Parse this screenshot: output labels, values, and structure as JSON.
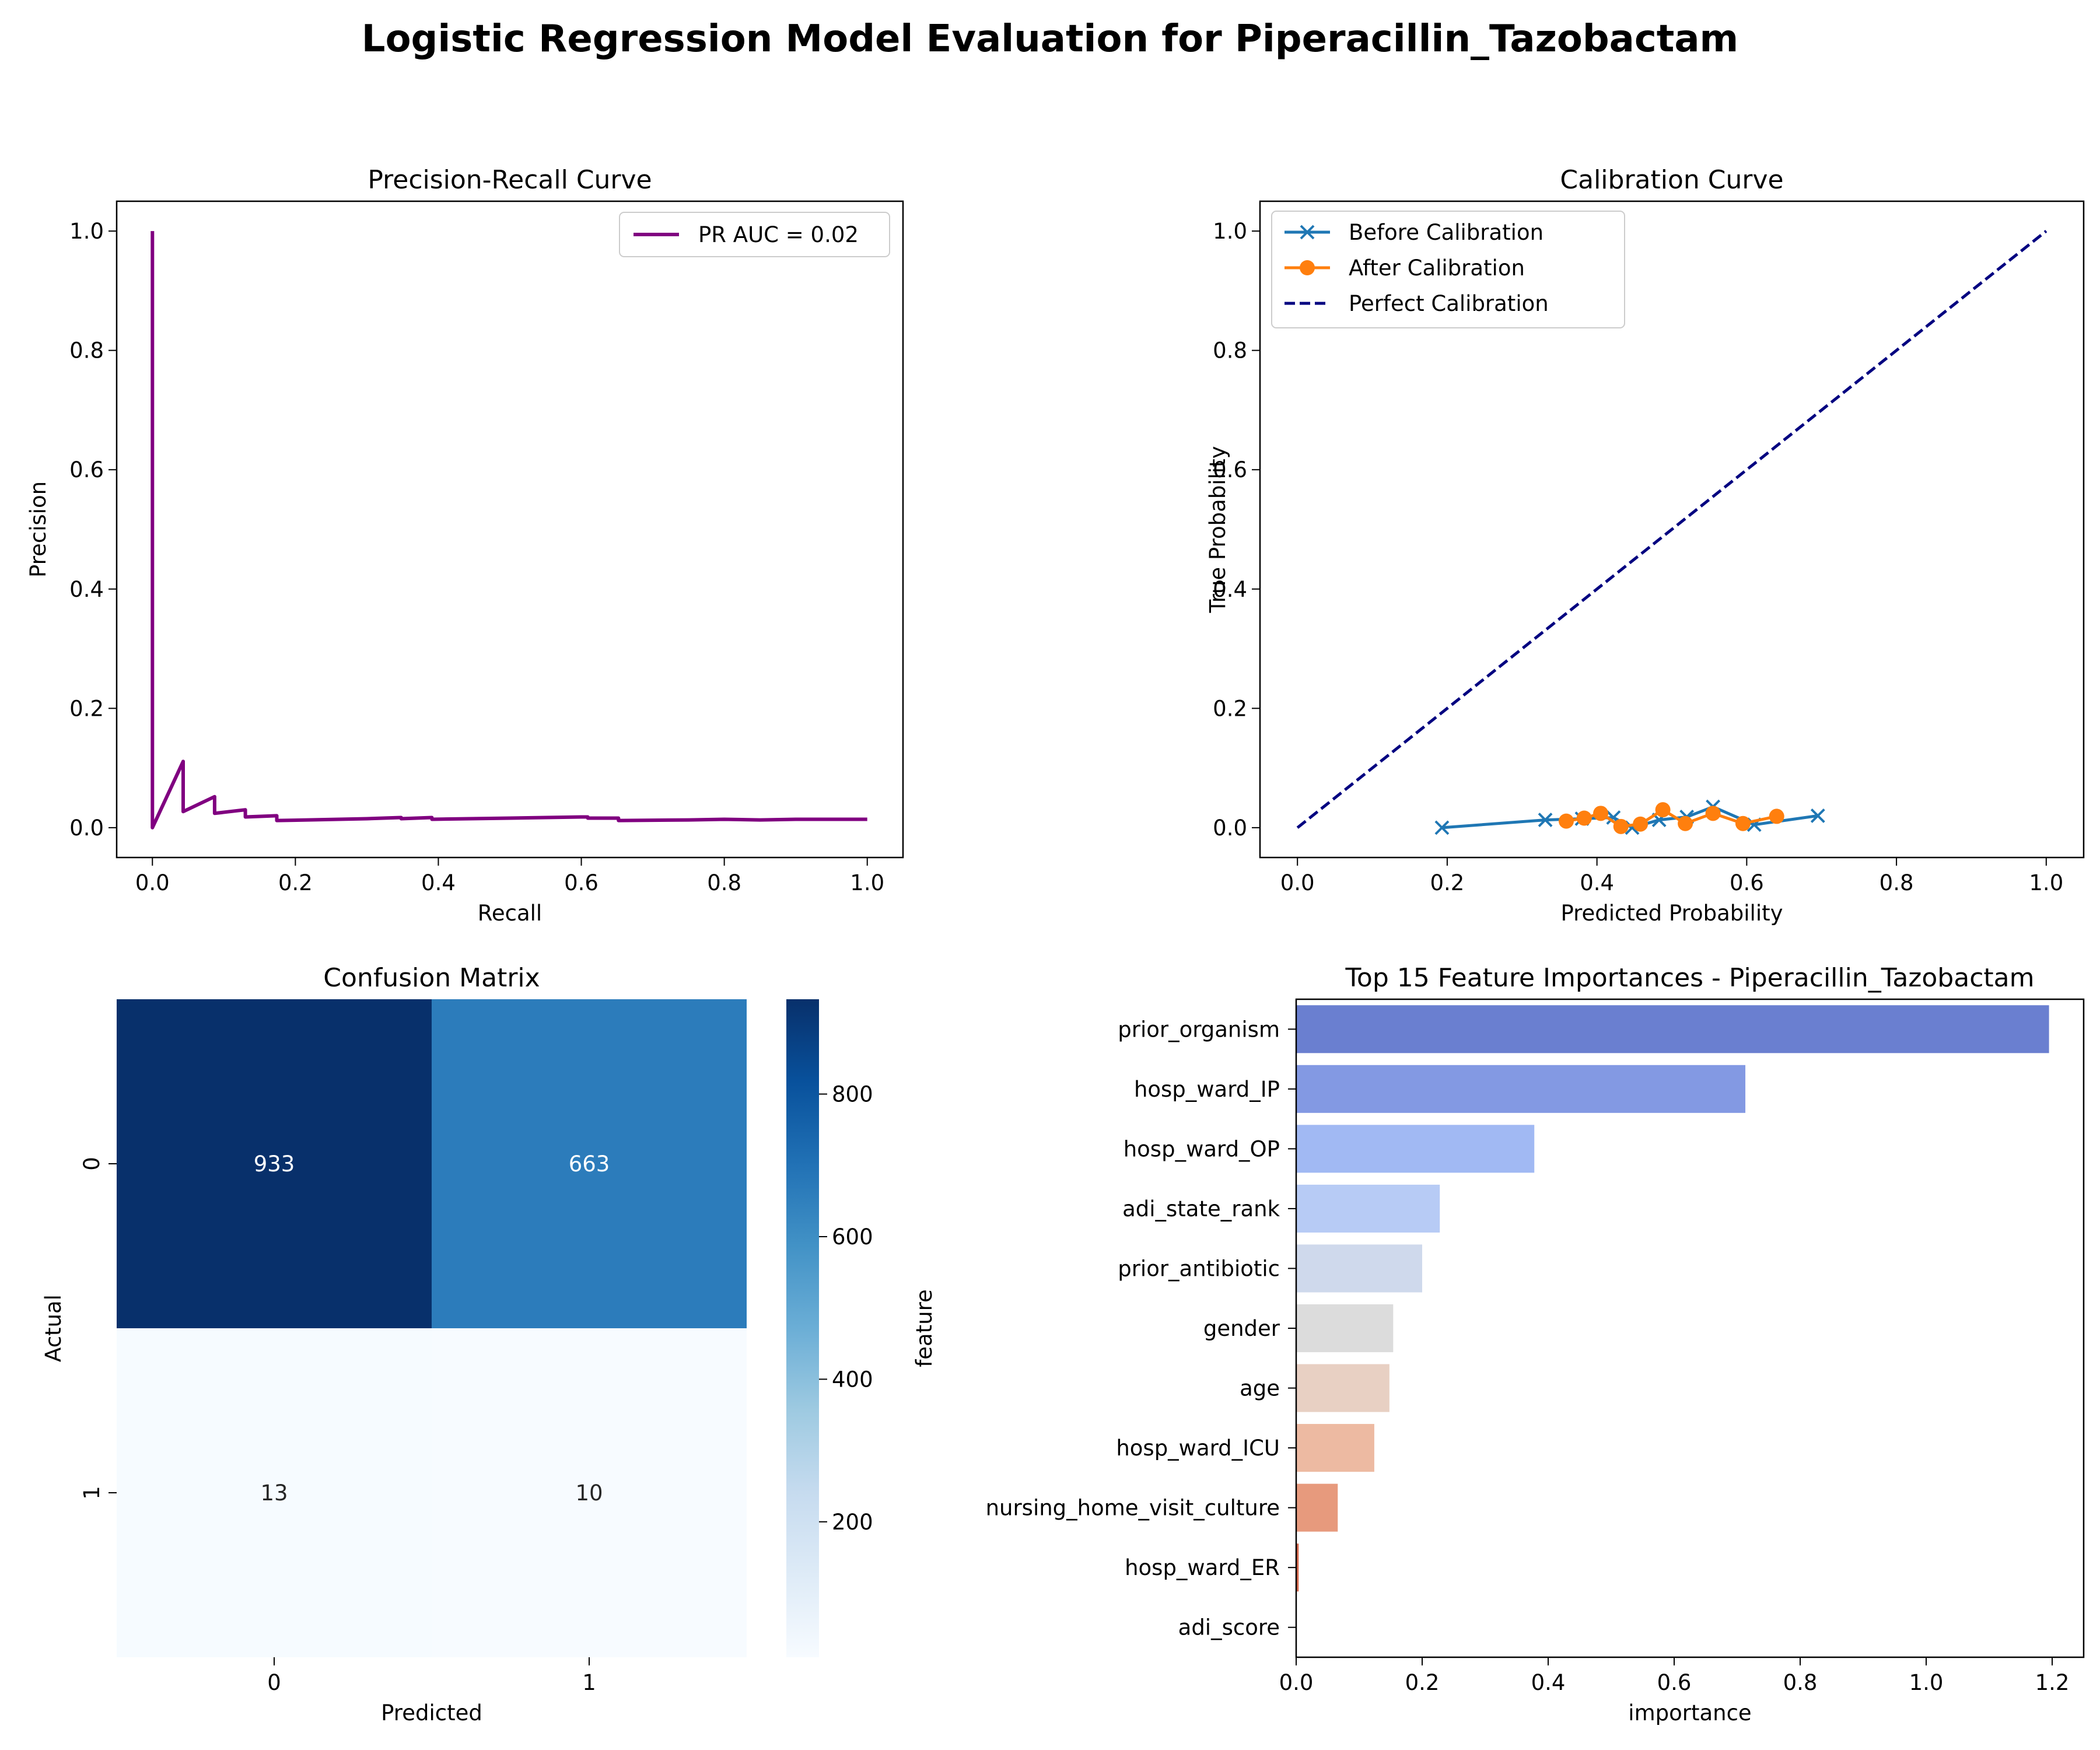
{
  "figure": {
    "suptitle": "Logistic Regression Model Evaluation for Piperacillin_Tazobactam"
  },
  "chart_data": [
    {
      "panel": "pr",
      "type": "line",
      "title": "Precision-Recall Curve",
      "xlabel": "Recall",
      "ylabel": "Precision",
      "xlim": [
        -0.05,
        1.05
      ],
      "ylim": [
        -0.05,
        1.05
      ],
      "xticks": [
        "0.0",
        "0.2",
        "0.4",
        "0.6",
        "0.8",
        "1.0"
      ],
      "yticks": [
        "0.0",
        "0.2",
        "0.4",
        "0.6",
        "0.8",
        "1.0"
      ],
      "legend": "upper right",
      "series": [
        {
          "name": "PR AUC = 0.02",
          "color": "#800080",
          "points": [
            [
              0.0,
              1.0
            ],
            [
              0.0,
              0.0
            ],
            [
              0.043,
              0.111
            ],
            [
              0.043,
              0.027
            ],
            [
              0.087,
              0.052
            ],
            [
              0.087,
              0.024
            ],
            [
              0.13,
              0.03
            ],
            [
              0.13,
              0.018
            ],
            [
              0.174,
              0.02
            ],
            [
              0.174,
              0.012
            ],
            [
              0.217,
              0.013
            ],
            [
              0.3,
              0.015
            ],
            [
              0.348,
              0.017
            ],
            [
              0.348,
              0.015
            ],
            [
              0.391,
              0.017
            ],
            [
              0.391,
              0.014
            ],
            [
              0.5,
              0.016
            ],
            [
              0.6,
              0.018
            ],
            [
              0.609,
              0.018
            ],
            [
              0.609,
              0.016
            ],
            [
              0.652,
              0.016
            ],
            [
              0.652,
              0.012
            ],
            [
              0.75,
              0.013
            ],
            [
              0.8,
              0.014
            ],
            [
              0.85,
              0.013
            ],
            [
              0.9,
              0.014
            ],
            [
              1.0,
              0.014
            ]
          ]
        }
      ]
    },
    {
      "panel": "calibration",
      "type": "line",
      "title": "Calibration Curve",
      "xlabel": "Predicted Probability",
      "ylabel": "True Probability",
      "xlim": [
        -0.05,
        1.05
      ],
      "ylim": [
        -0.05,
        1.05
      ],
      "xticks": [
        "0.0",
        "0.2",
        "0.4",
        "0.6",
        "0.8",
        "1.0"
      ],
      "yticks": [
        "0.0",
        "0.2",
        "0.4",
        "0.6",
        "0.8",
        "1.0"
      ],
      "legend": "upper left",
      "series": [
        {
          "name": "Before Calibration",
          "color": "#1f77b4",
          "marker": "x",
          "points": [
            [
              0.193,
              0.0
            ],
            [
              0.331,
              0.013
            ],
            [
              0.38,
              0.015
            ],
            [
              0.422,
              0.017
            ],
            [
              0.447,
              0.0
            ],
            [
              0.483,
              0.013
            ],
            [
              0.52,
              0.018
            ],
            [
              0.555,
              0.035
            ],
            [
              0.61,
              0.005
            ],
            [
              0.695,
              0.02
            ]
          ]
        },
        {
          "name": "After Calibration",
          "color": "#ff7f0e",
          "marker": "o",
          "points": [
            [
              0.359,
              0.011
            ],
            [
              0.383,
              0.016
            ],
            [
              0.405,
              0.024
            ],
            [
              0.432,
              0.002
            ],
            [
              0.458,
              0.006
            ],
            [
              0.488,
              0.03
            ],
            [
              0.518,
              0.007
            ],
            [
              0.555,
              0.024
            ],
            [
              0.595,
              0.007
            ],
            [
              0.64,
              0.019
            ]
          ]
        },
        {
          "name": "Perfect Calibration",
          "color": "#000080",
          "dash": true,
          "points": [
            [
              0.0,
              0.0
            ],
            [
              1.0,
              1.0
            ]
          ]
        }
      ]
    },
    {
      "panel": "confusion",
      "type": "heatmap",
      "title": "Confusion Matrix",
      "xlabel": "Predicted",
      "ylabel": "Actual",
      "xticklabels": [
        "0",
        "1"
      ],
      "yticklabels": [
        "0",
        "1"
      ],
      "values": [
        [
          933,
          663
        ],
        [
          13,
          10
        ]
      ],
      "colorbar_ticks": [
        "200",
        "400",
        "600",
        "800"
      ],
      "colorbar_tick_values": [
        200,
        400,
        600,
        800
      ]
    },
    {
      "panel": "importance",
      "type": "bar",
      "orientation": "horizontal",
      "title": "Top 15 Feature Importances - Piperacillin_Tazobactam",
      "xlabel": "importance",
      "ylabel": "feature",
      "xlim": [
        0,
        1.25
      ],
      "xticks": [
        "0.0",
        "0.2",
        "0.4",
        "0.6",
        "0.8",
        "1.0",
        "1.2"
      ],
      "categories": [
        "prior_organism",
        "hosp_ward_IP",
        "hosp_ward_OP",
        "adi_state_rank",
        "prior_antibiotic",
        "gender",
        "age",
        "hosp_ward_ICU",
        "nursing_home_visit_culture",
        "hosp_ward_ER",
        "adi_score"
      ],
      "values": [
        1.195,
        0.713,
        0.378,
        0.228,
        0.2,
        0.154,
        0.148,
        0.124,
        0.066,
        0.004,
        0.0
      ],
      "colors": [
        "#6a7fd0",
        "#8399e3",
        "#a1b9f3",
        "#b7cbf5",
        "#cfd9ec",
        "#dcdcdc",
        "#e8d0c3",
        "#edbaa2",
        "#e79a7d",
        "#d86b4e",
        "#c44e3a"
      ]
    }
  ]
}
